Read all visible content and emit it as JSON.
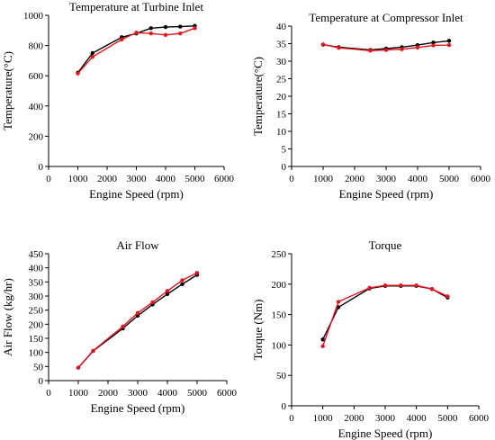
{
  "chart_data": [
    {
      "type": "line",
      "title": "Temperature at Turbine Inlet",
      "xlabel": "Engine Speed (rpm)",
      "ylabel": "Temperature(°C)",
      "xlim": [
        0,
        6000
      ],
      "ylim": [
        0,
        1000
      ],
      "xticks": [
        0,
        1000,
        2000,
        3000,
        4000,
        5000,
        6000
      ],
      "yticks": [
        0,
        200,
        400,
        600,
        800,
        1000
      ],
      "grid": false,
      "series": [
        {
          "color": "#000000",
          "x": [
            1000,
            1500,
            2500,
            3000,
            3500,
            4000,
            4500,
            5000
          ],
          "y": [
            620,
            750,
            855,
            880,
            915,
            922,
            925,
            930
          ]
        },
        {
          "color": "#e8131b",
          "x": [
            1000,
            1500,
            2500,
            3000,
            3500,
            4000,
            4500,
            5000
          ],
          "y": [
            615,
            725,
            840,
            885,
            880,
            870,
            880,
            915
          ]
        }
      ]
    },
    {
      "type": "line",
      "title": "Temperature at Compressor Inlet",
      "xlabel": "Engine Speed (rpm)",
      "ylabel": "Temperature(°C)",
      "xlim": [
        0,
        6000
      ],
      "ylim": [
        0,
        40
      ],
      "xticks": [
        0,
        1000,
        2000,
        3000,
        4000,
        5000,
        6000
      ],
      "yticks": [
        0,
        5,
        10,
        15,
        20,
        25,
        30,
        35,
        40
      ],
      "grid": false,
      "series": [
        {
          "color": "#000000",
          "x": [
            1000,
            1500,
            2500,
            3000,
            3500,
            4000,
            4500,
            5000
          ],
          "y": [
            34.7,
            34.0,
            33.2,
            33.6,
            34.0,
            34.6,
            35.3,
            35.8
          ]
        },
        {
          "color": "#e8131b",
          "x": [
            1000,
            1500,
            2500,
            3000,
            3500,
            4000,
            4500,
            5000
          ],
          "y": [
            34.8,
            33.8,
            33.0,
            33.2,
            33.4,
            33.9,
            34.5,
            34.6
          ]
        }
      ]
    },
    {
      "type": "line",
      "title": "Air Flow",
      "xlabel": "Engine Speed (rpm)",
      "ylabel": "Air Flow (kg/hr)",
      "xlim": [
        0,
        6000
      ],
      "ylim": [
        0,
        450
      ],
      "xticks": [
        0,
        1000,
        2000,
        3000,
        4000,
        5000,
        6000
      ],
      "yticks": [
        0,
        50,
        100,
        150,
        200,
        250,
        300,
        350,
        400,
        450
      ],
      "grid": false,
      "series": [
        {
          "color": "#000000",
          "x": [
            1000,
            1500,
            2500,
            3000,
            3500,
            4000,
            4500,
            5000
          ],
          "y": [
            46,
            105,
            185,
            230,
            270,
            307,
            342,
            375
          ]
        },
        {
          "color": "#e8131b",
          "x": [
            1000,
            1500,
            2500,
            3000,
            3500,
            4000,
            4500,
            5000
          ],
          "y": [
            46,
            106,
            192,
            240,
            278,
            318,
            356,
            382
          ]
        }
      ]
    },
    {
      "type": "line",
      "title": "Torque",
      "xlabel": "Engine Speed (rpm)",
      "ylabel": "Torque (Nm)",
      "xlim": [
        0,
        6000
      ],
      "ylim": [
        0,
        250
      ],
      "xticks": [
        0,
        1000,
        2000,
        3000,
        4000,
        5000,
        6000
      ],
      "yticks": [
        0,
        50,
        100,
        150,
        200,
        250
      ],
      "grid": false,
      "series": [
        {
          "color": "#000000",
          "x": [
            1000,
            1500,
            2500,
            3000,
            3500,
            4000,
            4500,
            5000
          ],
          "y": [
            109,
            162,
            193,
            197,
            197,
            197,
            192,
            178
          ]
        },
        {
          "color": "#e8131b",
          "x": [
            1000,
            1500,
            2500,
            3000,
            3500,
            4000,
            4500,
            5000
          ],
          "y": [
            98,
            171,
            194,
            198,
            198,
            198,
            192,
            180
          ]
        }
      ]
    }
  ]
}
